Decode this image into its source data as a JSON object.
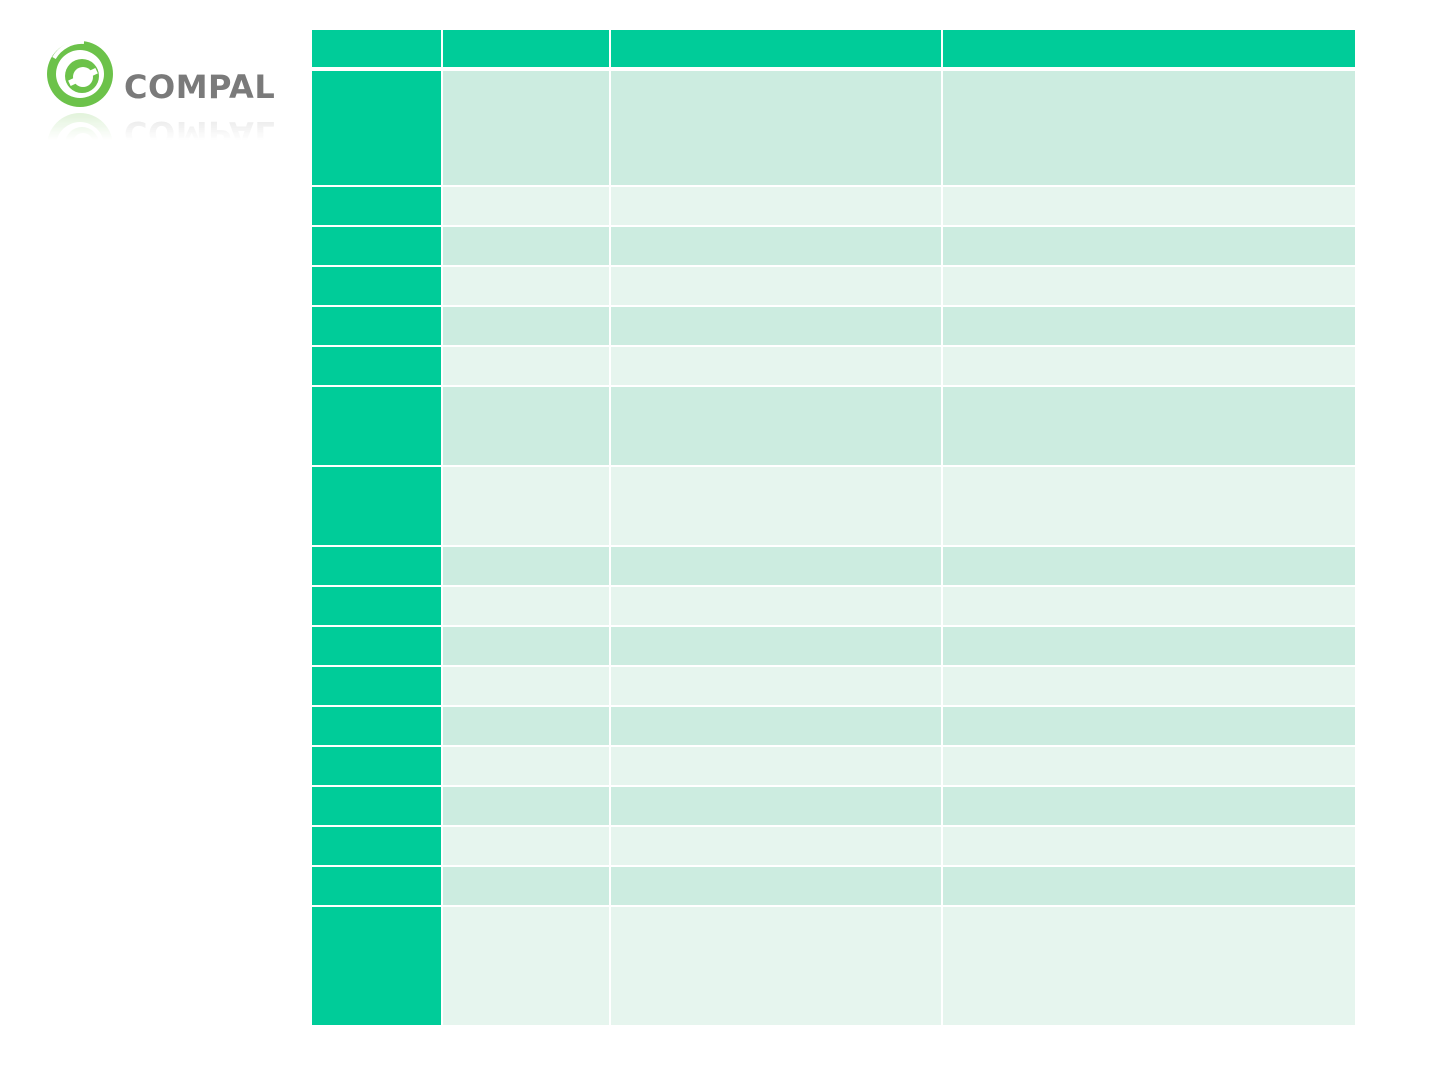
{
  "logo": {
    "name": "COMPAL",
    "primary_color": "#6cc24a",
    "text_color": "#7a7a7a"
  },
  "colors": {
    "header": "#00cc99",
    "first_column": "#00cc99",
    "row_dark": "#ccece0",
    "row_light": "#e6f5ee"
  },
  "table": {
    "headers": [
      "",
      "",
      "",
      ""
    ],
    "rows": [
      [
        "",
        "",
        "",
        ""
      ],
      [
        "",
        "",
        "",
        ""
      ],
      [
        "",
        "",
        "",
        ""
      ],
      [
        "",
        "",
        "",
        ""
      ],
      [
        "",
        "",
        "",
        ""
      ],
      [
        "",
        "",
        "",
        ""
      ],
      [
        "",
        "",
        "",
        ""
      ],
      [
        "",
        "",
        "",
        ""
      ],
      [
        "",
        "",
        "",
        ""
      ],
      [
        "",
        "",
        "",
        ""
      ],
      [
        "",
        "",
        "",
        ""
      ],
      [
        "",
        "",
        "",
        ""
      ],
      [
        "",
        "",
        "",
        ""
      ],
      [
        "",
        "",
        "",
        ""
      ],
      [
        "",
        "",
        "",
        ""
      ],
      [
        "",
        "",
        "",
        ""
      ],
      [
        "",
        "",
        "",
        ""
      ],
      [
        "",
        "",
        "",
        ""
      ],
      [
        "",
        "",
        "",
        ""
      ]
    ]
  }
}
